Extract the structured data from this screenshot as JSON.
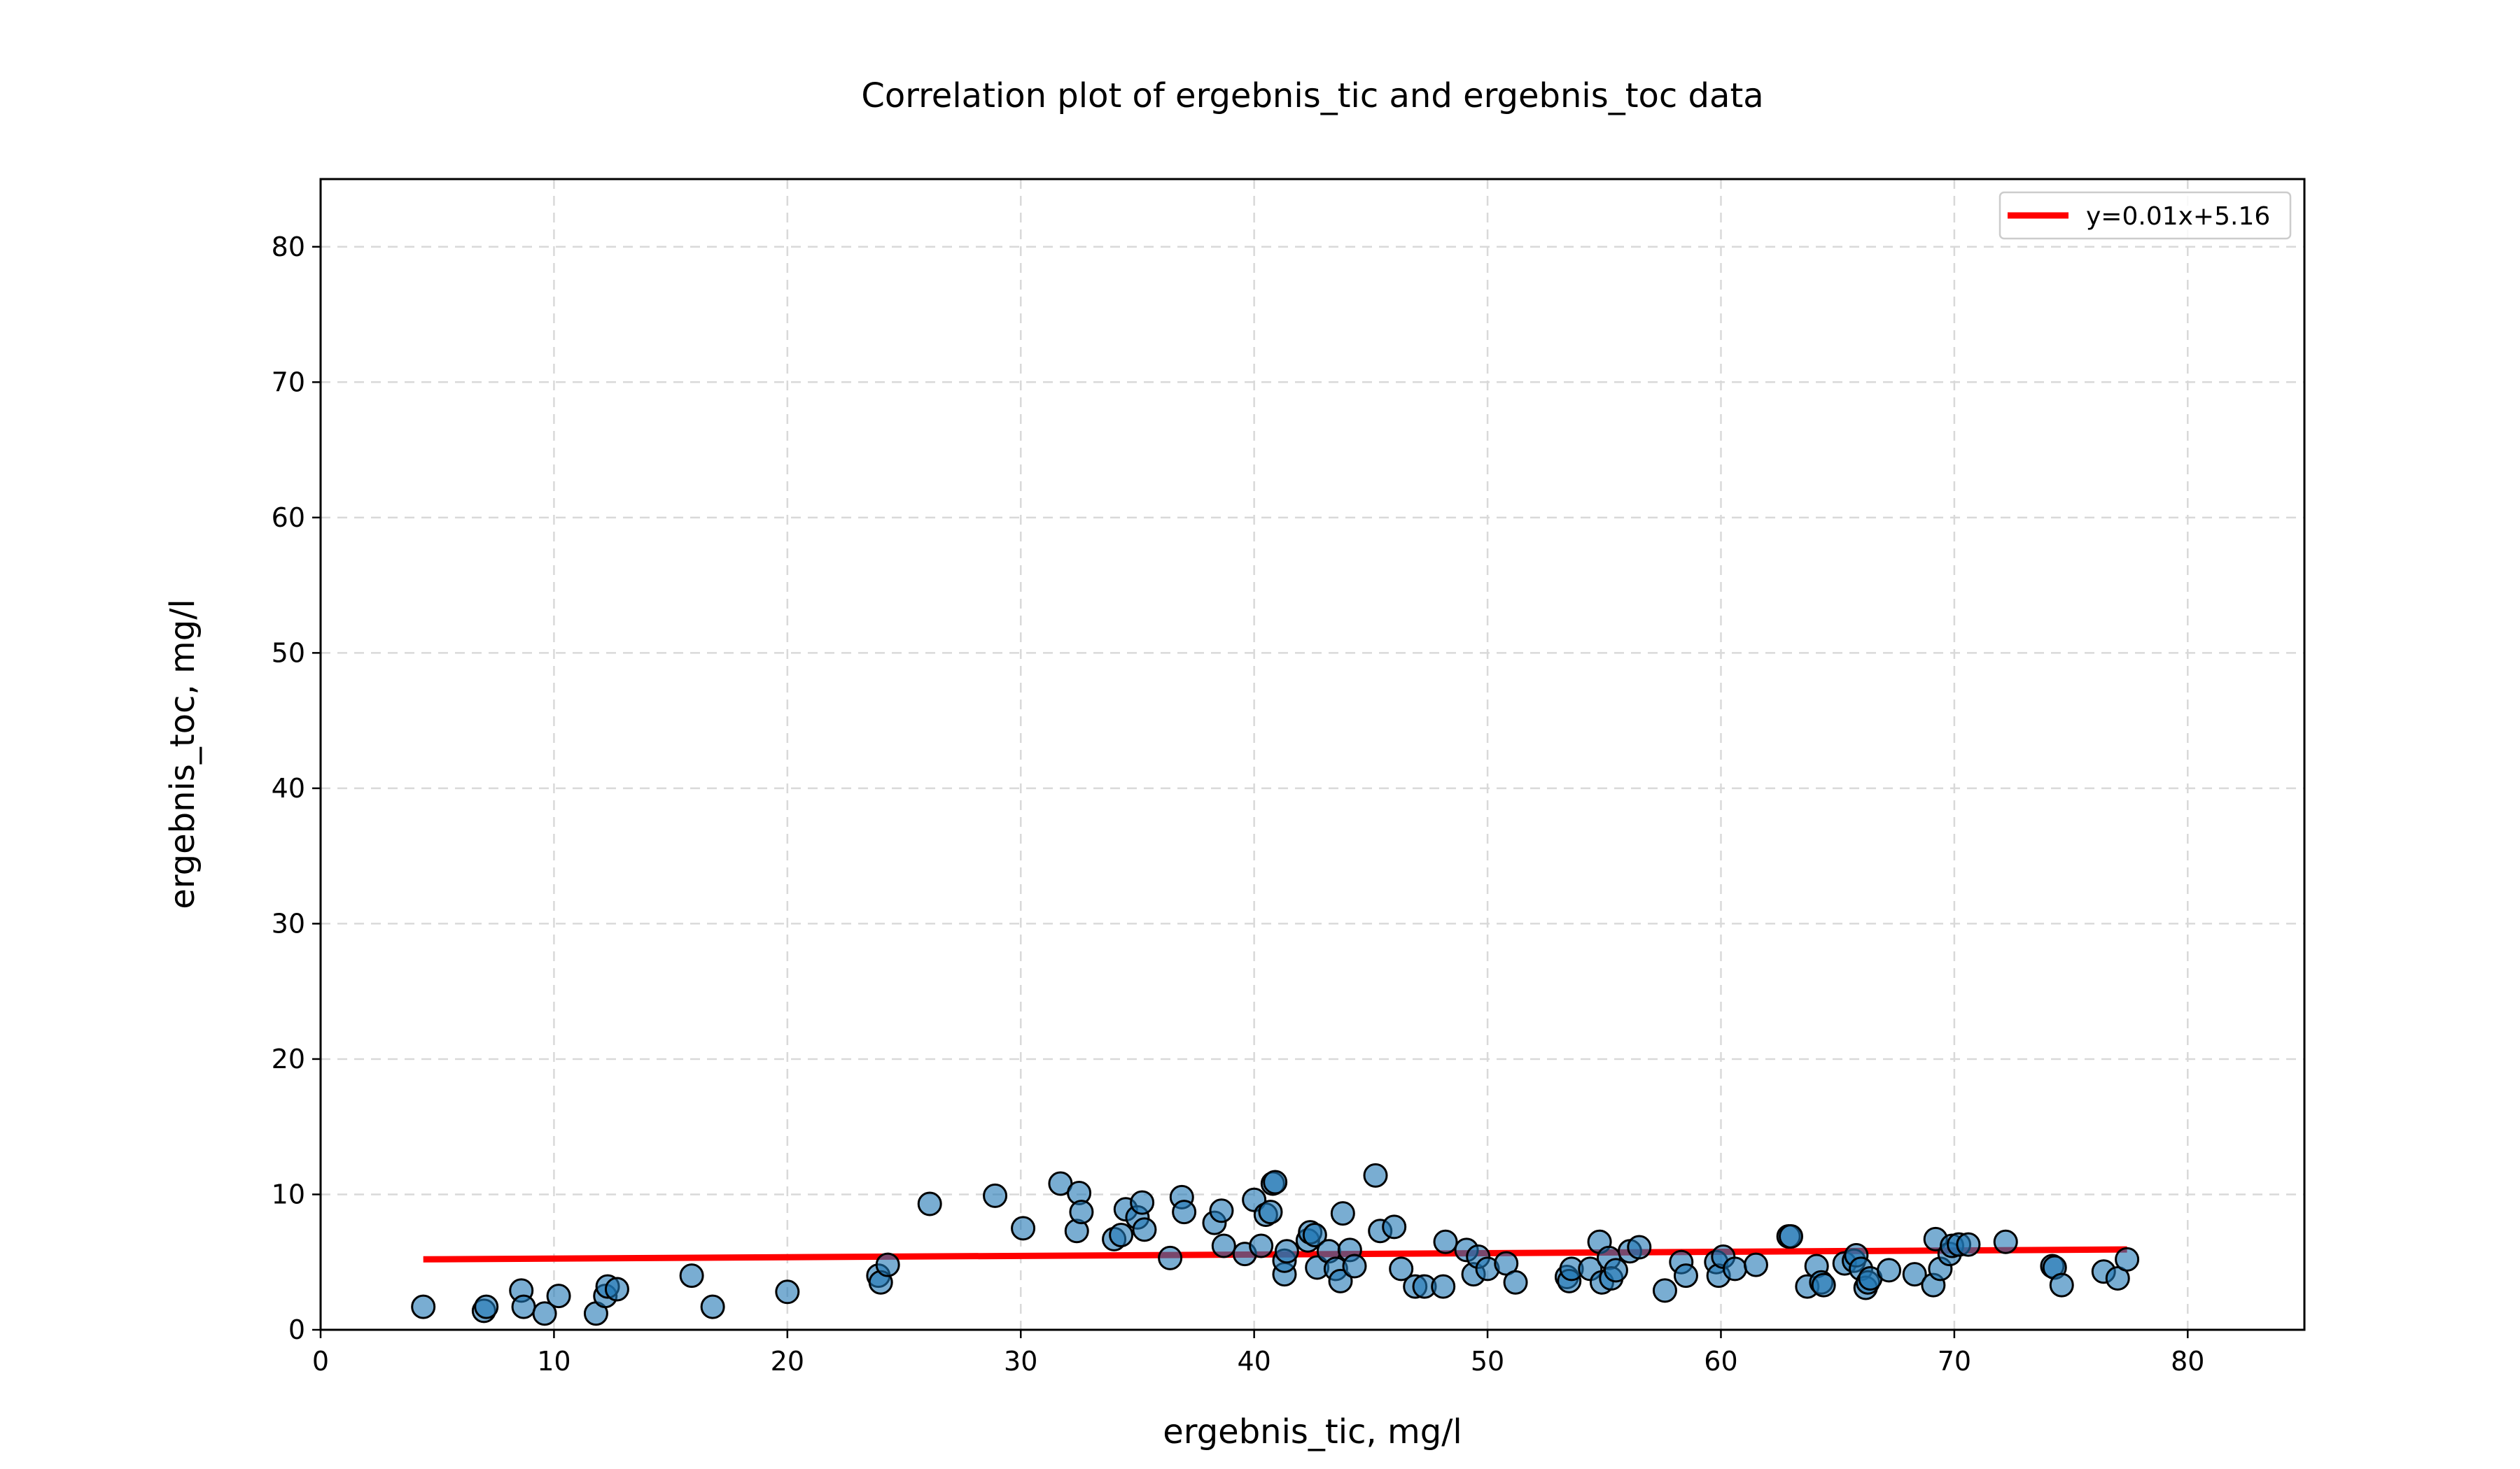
{
  "chart_data": {
    "type": "scatter",
    "title": "Correlation plot of ergebnis_tic and ergebnis_toc data",
    "xlabel": "ergebnis_tic, mg/l",
    "ylabel": "ergebnis_toc, mg/l",
    "xlim": [
      0,
      85
    ],
    "ylim": [
      0,
      85
    ],
    "xticks": [
      0,
      10,
      20,
      30,
      40,
      50,
      60,
      70,
      80
    ],
    "yticks": [
      0,
      10,
      20,
      30,
      40,
      50,
      60,
      70,
      80
    ],
    "tick_labels_x": [
      "0",
      "10",
      "20",
      "30",
      "40",
      "50",
      "60",
      "70",
      "80"
    ],
    "tick_labels_y": [
      "0",
      "10",
      "20",
      "30",
      "40",
      "50",
      "60",
      "70",
      "80"
    ],
    "grid": true,
    "legend": {
      "position": "top-right",
      "entries": [
        "y=0.01x+5.16"
      ]
    },
    "colors": {
      "points": "#1f77b4",
      "fit_line": "#ff0000",
      "grid": "#d9d9d9"
    },
    "fit": {
      "slope": 0.01,
      "intercept": 5.16,
      "x_range": [
        4.4,
        77.4
      ],
      "label": "y=0.01x+5.16"
    },
    "series": [
      {
        "points": [
          [
            4.4,
            1.7
          ],
          [
            7.0,
            1.4
          ],
          [
            7.1,
            1.7
          ],
          [
            8.6,
            2.9
          ],
          [
            8.7,
            1.7
          ],
          [
            9.6,
            1.2
          ],
          [
            10.2,
            2.5
          ],
          [
            11.8,
            1.2
          ],
          [
            12.2,
            2.5
          ],
          [
            12.3,
            3.2
          ],
          [
            12.7,
            3.0
          ],
          [
            15.9,
            4.0
          ],
          [
            16.8,
            1.7
          ],
          [
            20.0,
            2.8
          ],
          [
            23.9,
            4.0
          ],
          [
            24.0,
            3.5
          ],
          [
            24.3,
            4.8
          ],
          [
            26.1,
            9.3
          ],
          [
            28.9,
            9.9
          ],
          [
            30.1,
            7.5
          ],
          [
            31.7,
            10.8
          ],
          [
            32.5,
            10.1
          ],
          [
            32.4,
            7.3
          ],
          [
            32.6,
            8.7
          ],
          [
            34.0,
            6.7
          ],
          [
            34.3,
            7.0
          ],
          [
            34.5,
            8.9
          ],
          [
            35.0,
            8.3
          ],
          [
            35.2,
            9.4
          ],
          [
            35.3,
            7.4
          ],
          [
            36.4,
            5.3
          ],
          [
            36.9,
            9.8
          ],
          [
            37.0,
            8.7
          ],
          [
            38.3,
            7.9
          ],
          [
            38.6,
            8.8
          ],
          [
            38.7,
            6.2
          ],
          [
            39.6,
            5.6
          ],
          [
            40.0,
            9.6
          ],
          [
            40.3,
            6.2
          ],
          [
            40.5,
            8.5
          ],
          [
            40.7,
            8.7
          ],
          [
            40.8,
            10.8
          ],
          [
            40.9,
            10.9
          ],
          [
            41.3,
            4.1
          ],
          [
            41.3,
            5.1
          ],
          [
            41.4,
            5.8
          ],
          [
            42.3,
            6.6
          ],
          [
            42.4,
            7.2
          ],
          [
            42.6,
            7.0
          ],
          [
            42.7,
            4.6
          ],
          [
            43.2,
            5.8
          ],
          [
            43.5,
            4.5
          ],
          [
            43.7,
            3.6
          ],
          [
            43.8,
            8.6
          ],
          [
            44.1,
            5.9
          ],
          [
            44.3,
            4.7
          ],
          [
            45.2,
            11.4
          ],
          [
            45.4,
            7.3
          ],
          [
            46.0,
            7.6
          ],
          [
            46.3,
            4.5
          ],
          [
            46.9,
            3.2
          ],
          [
            47.3,
            3.2
          ],
          [
            48.1,
            3.2
          ],
          [
            48.2,
            6.5
          ],
          [
            49.1,
            5.9
          ],
          [
            49.4,
            4.1
          ],
          [
            49.6,
            5.4
          ],
          [
            50.0,
            4.5
          ],
          [
            50.8,
            4.9
          ],
          [
            51.2,
            3.5
          ],
          [
            53.4,
            3.9
          ],
          [
            53.5,
            3.6
          ],
          [
            53.6,
            4.5
          ],
          [
            54.4,
            4.5
          ],
          [
            54.8,
            6.5
          ],
          [
            54.9,
            3.5
          ],
          [
            55.2,
            5.3
          ],
          [
            55.3,
            3.8
          ],
          [
            55.5,
            4.4
          ],
          [
            56.1,
            5.8
          ],
          [
            56.5,
            6.1
          ],
          [
            57.6,
            2.9
          ],
          [
            58.3,
            5.0
          ],
          [
            58.5,
            4.0
          ],
          [
            59.8,
            5.0
          ],
          [
            59.9,
            4.0
          ],
          [
            60.1,
            5.4
          ],
          [
            60.6,
            4.5
          ],
          [
            61.5,
            4.8
          ],
          [
            62.9,
            6.9
          ],
          [
            63.0,
            6.9
          ],
          [
            63.7,
            3.2
          ],
          [
            64.1,
            4.7
          ],
          [
            64.3,
            3.5
          ],
          [
            64.4,
            3.3
          ],
          [
            65.3,
            4.9
          ],
          [
            65.7,
            5.1
          ],
          [
            65.8,
            5.5
          ],
          [
            66.0,
            4.5
          ],
          [
            66.2,
            3.1
          ],
          [
            66.3,
            3.5
          ],
          [
            66.4,
            3.8
          ],
          [
            67.2,
            4.4
          ],
          [
            68.3,
            4.1
          ],
          [
            69.1,
            3.3
          ],
          [
            69.2,
            6.7
          ],
          [
            69.4,
            4.5
          ],
          [
            69.8,
            5.6
          ],
          [
            69.9,
            6.2
          ],
          [
            70.2,
            6.3
          ],
          [
            70.6,
            6.3
          ],
          [
            72.2,
            6.5
          ],
          [
            74.2,
            4.7
          ],
          [
            74.3,
            4.6
          ],
          [
            74.6,
            3.3
          ],
          [
            76.4,
            4.3
          ],
          [
            77.0,
            3.8
          ],
          [
            77.4,
            5.2
          ]
        ]
      }
    ]
  }
}
